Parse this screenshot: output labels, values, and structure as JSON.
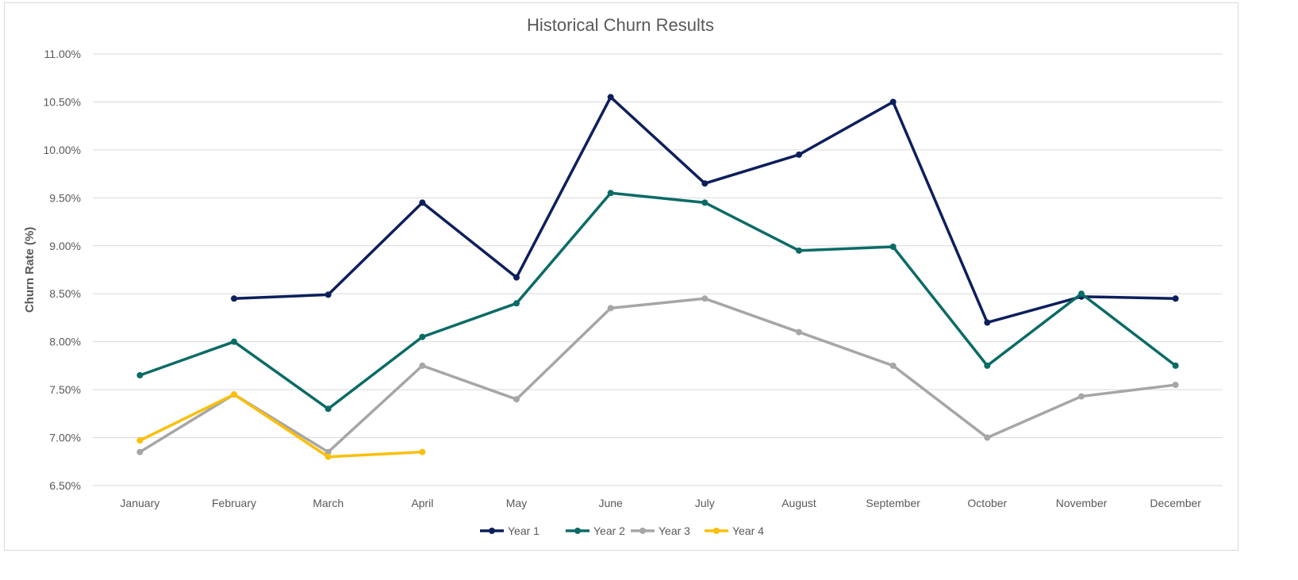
{
  "chart_data": {
    "type": "line",
    "title": "Historical Churn Results",
    "xlabel": "",
    "ylabel": "Churn Rate (%)",
    "categories": [
      "January",
      "February",
      "March",
      "April",
      "May",
      "June",
      "July",
      "August",
      "September",
      "October",
      "November",
      "December"
    ],
    "y_ticks": [
      "6.50%",
      "7.00%",
      "7.50%",
      "8.00%",
      "8.50%",
      "9.00%",
      "9.50%",
      "10.00%",
      "10.50%",
      "11.00%"
    ],
    "ylim": [
      6.5,
      11.0
    ],
    "grid": true,
    "legend_position": "bottom",
    "series": [
      {
        "name": "Year 1",
        "color": "#0d1f5c",
        "values": [
          null,
          8.45,
          8.49,
          9.45,
          8.67,
          10.55,
          9.65,
          9.95,
          10.5,
          8.2,
          8.47,
          8.45
        ]
      },
      {
        "name": "Year 2",
        "color": "#0b6b66",
        "values": [
          7.65,
          8.0,
          7.3,
          8.05,
          8.4,
          9.55,
          9.45,
          8.95,
          8.99,
          7.75,
          8.5,
          7.75
        ]
      },
      {
        "name": "Year 3",
        "color": "#a6a6a6",
        "values": [
          6.85,
          7.45,
          6.85,
          7.75,
          7.4,
          8.35,
          8.45,
          8.1,
          7.75,
          7.0,
          7.43,
          7.55
        ]
      },
      {
        "name": "Year 4",
        "color": "#fbbf0a",
        "values": [
          6.97,
          7.45,
          6.8,
          6.85,
          null,
          null,
          null,
          null,
          null,
          null,
          null,
          null
        ]
      }
    ]
  }
}
